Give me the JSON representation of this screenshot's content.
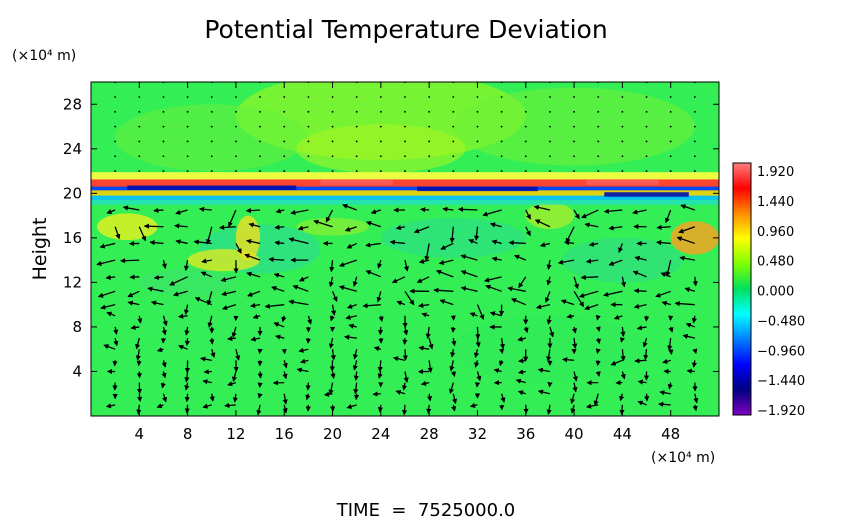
{
  "chart_data": {
    "type": "heatmap",
    "title": "Potential Temperature Deviation",
    "ylabel": "Height",
    "y_units_label": "(×10⁴ m)",
    "x_units_label": "(×10⁴ m)",
    "xlim": [
      0,
      52
    ],
    "ylim": [
      0,
      30
    ],
    "x_ticks": [
      "4",
      "8",
      "12",
      "16",
      "20",
      "24",
      "28",
      "32",
      "36",
      "40",
      "44",
      "48"
    ],
    "y_ticks": [
      "4",
      "8",
      "12",
      "16",
      "20",
      "24",
      "28"
    ],
    "colorbar": {
      "min": -1.92,
      "max": 1.92,
      "labels": [
        "1.920",
        "1.440",
        "0.960",
        "0.480",
        "0.000",
        "−0.480",
        "−0.960",
        "−1.440",
        "−1.920"
      ],
      "colors": [
        "#ff7f7f",
        "#ff0000",
        "#ff8c00",
        "#ffff00",
        "#7fff00",
        "#00e060",
        "#00ffff",
        "#007fff",
        "#0000ff",
        "#000080",
        "#8000c0"
      ]
    },
    "background_field": "#33ee55",
    "footer": "TIME  =  7525000.0"
  }
}
